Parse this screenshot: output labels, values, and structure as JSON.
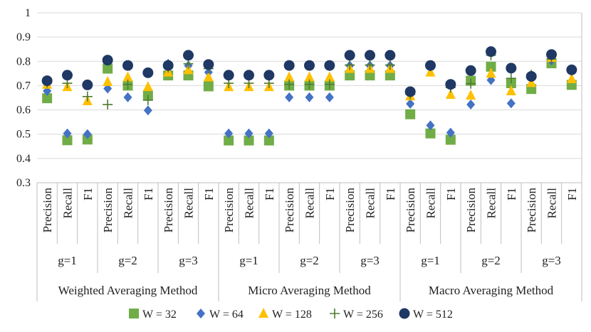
{
  "chart_data": {
    "type": "scatter",
    "title": "",
    "xlabel": "",
    "ylabel": "",
    "ylim": [
      0.3,
      1
    ],
    "yticks": [
      "0.3",
      "0.4",
      "0.5",
      "0.6",
      "0.7",
      "0.8",
      "0.9",
      "1"
    ],
    "grid": true,
    "legend_position": "bottom",
    "methods": [
      "Weighted Averaging Method",
      "Micro Averaging Method",
      "Macro Averaging Method"
    ],
    "groups": [
      "g=1",
      "g=2",
      "g=3"
    ],
    "metrics": [
      "Precision",
      "Recall",
      "F1"
    ],
    "series": [
      {
        "name": "W = 32",
        "color": "#70AD47",
        "marker": "square",
        "values": [
          0.648,
          0.475,
          0.478,
          0.77,
          0.7,
          0.66,
          0.742,
          0.742,
          0.697,
          0.474,
          0.474,
          0.474,
          0.7,
          0.7,
          0.7,
          0.742,
          0.742,
          0.742,
          0.582,
          0.503,
          0.477,
          0.72,
          0.778,
          0.71,
          0.686,
          0.792,
          0.703
        ]
      },
      {
        "name": "W = 64",
        "color": "#4472C4",
        "marker": "diamond",
        "values": [
          0.678,
          0.503,
          0.5,
          0.688,
          0.652,
          0.598,
          0.79,
          0.782,
          0.755,
          0.503,
          0.503,
          0.503,
          0.652,
          0.652,
          0.652,
          0.782,
          0.782,
          0.782,
          0.625,
          0.536,
          0.506,
          0.622,
          0.723,
          0.627,
          0.743,
          0.803,
          0.76
        ]
      },
      {
        "name": "W = 128",
        "color": "#FFC000",
        "marker": "triangle",
        "values": [
          0.705,
          0.695,
          0.637,
          0.716,
          0.735,
          0.695,
          0.755,
          0.765,
          0.735,
          0.695,
          0.695,
          0.695,
          0.735,
          0.735,
          0.735,
          0.77,
          0.77,
          0.77,
          0.657,
          0.755,
          0.663,
          0.66,
          0.75,
          0.678,
          0.712,
          0.815,
          0.728
        ]
      },
      {
        "name": "W = 256",
        "color": "#4E7A2E",
        "marker": "plus",
        "values": [
          0.712,
          0.71,
          0.655,
          0.622,
          0.705,
          0.64,
          0.775,
          0.79,
          0.77,
          0.71,
          0.71,
          0.71,
          0.705,
          0.705,
          0.705,
          0.785,
          0.785,
          0.785,
          0.664,
          0.78,
          0.692,
          0.708,
          0.825,
          0.73,
          0.745,
          0.81,
          0.762
        ]
      },
      {
        "name": "W = 512",
        "color": "#1F3864",
        "marker": "circle",
        "values": [
          0.72,
          0.743,
          0.703,
          0.805,
          0.783,
          0.753,
          0.783,
          0.825,
          0.787,
          0.743,
          0.743,
          0.743,
          0.783,
          0.783,
          0.783,
          0.825,
          0.825,
          0.825,
          0.675,
          0.783,
          0.705,
          0.762,
          0.84,
          0.772,
          0.738,
          0.828,
          0.765
        ]
      }
    ]
  }
}
